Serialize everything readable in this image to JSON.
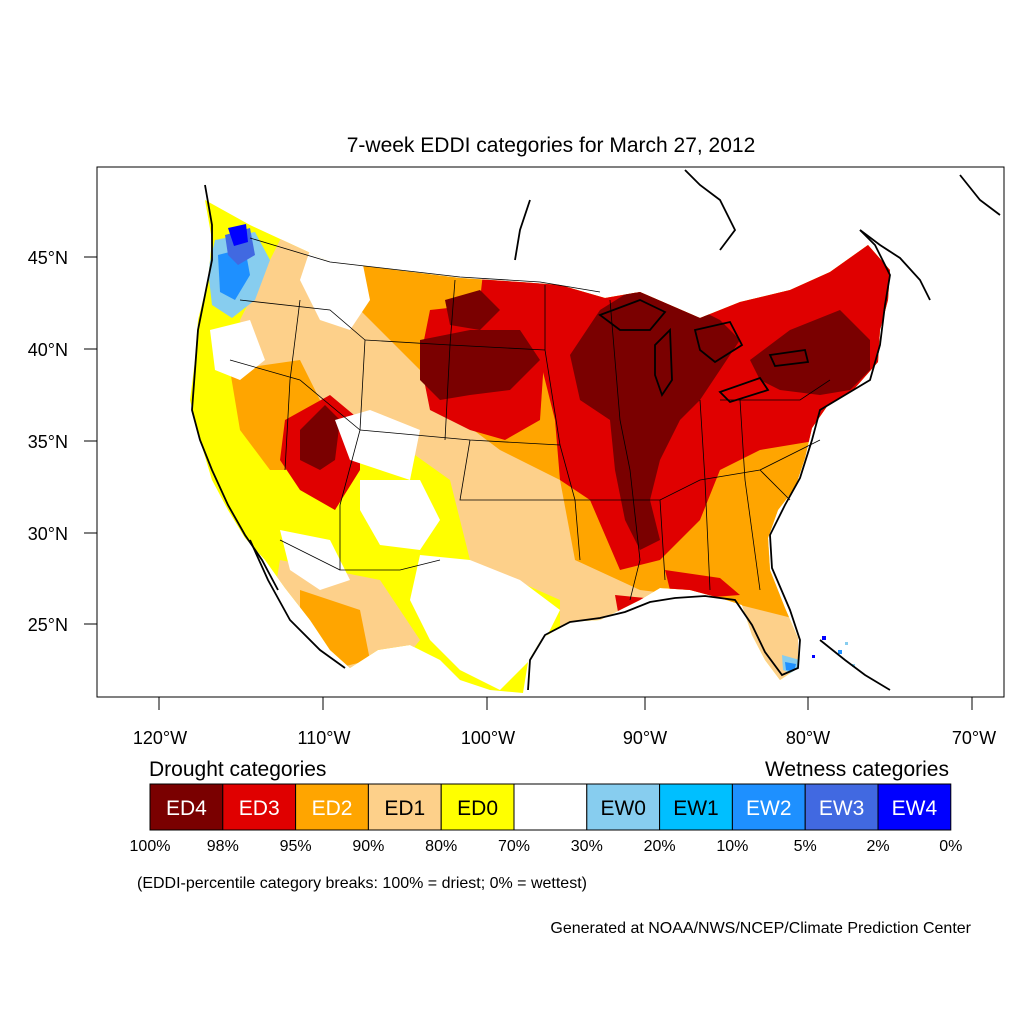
{
  "title": "7-week EDDI categories for March 27, 2012",
  "lat_labels": [
    "45°N",
    "40°N",
    "35°N",
    "30°N",
    "25°N"
  ],
  "lon_labels": [
    "120°W",
    "110°W",
    "100°W",
    "90°W",
    "80°W",
    "70°W"
  ],
  "legend": {
    "drought_heading": "Drought categories",
    "wetness_heading": "Wetness categories",
    "categories": [
      {
        "label": "ED4",
        "color": "#7a0000",
        "text_color": "#ffffff"
      },
      {
        "label": "ED3",
        "color": "#e00000",
        "text_color": "#ffffff"
      },
      {
        "label": "ED2",
        "color": "#ffa500",
        "text_color": "#ffffff"
      },
      {
        "label": "ED1",
        "color": "#fdd08a",
        "text_color": "#000000"
      },
      {
        "label": "ED0",
        "color": "#ffff00",
        "text_color": "#000000"
      },
      {
        "label": "",
        "color": "#ffffff",
        "text_color": "#000000"
      },
      {
        "label": "EW0",
        "color": "#87cdef",
        "text_color": "#000000"
      },
      {
        "label": "EW1",
        "color": "#00bfff",
        "text_color": "#000000"
      },
      {
        "label": "EW2",
        "color": "#1e90ff",
        "text_color": "#ffffff"
      },
      {
        "label": "EW3",
        "color": "#4169e1",
        "text_color": "#ffffff"
      },
      {
        "label": "EW4",
        "color": "#0000ff",
        "text_color": "#ffffff"
      }
    ],
    "breaks": [
      "100%",
      "98%",
      "95%",
      "90%",
      "80%",
      "70%",
      "30%",
      "20%",
      "10%",
      "5%",
      "2%",
      "0%"
    ]
  },
  "note": "(EDDI-percentile category breaks: 100% = driest; 0% = wettest)",
  "credit": "Generated at NOAA/NWS/NCEP/Climate Prediction Center"
}
